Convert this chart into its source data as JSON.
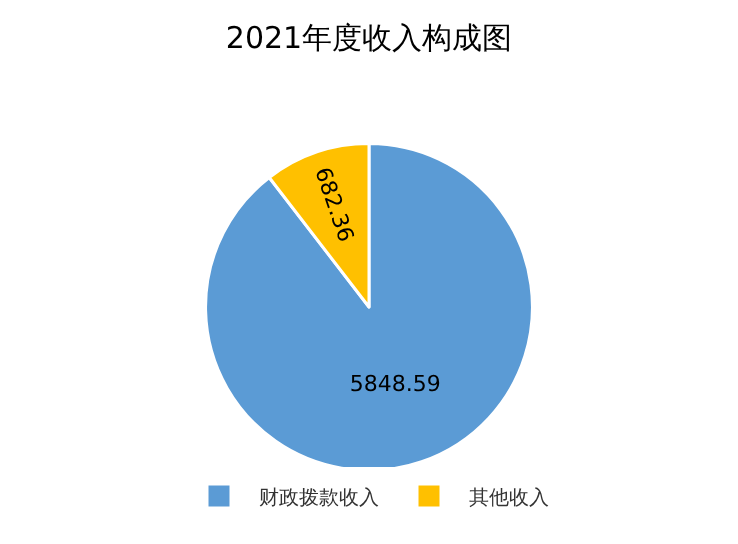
{
  "chart_data": {
    "type": "pie",
    "title": "2021年度收入构成图",
    "categories": [
      "财政拨款收入",
      "其他收入"
    ],
    "values": [
      5848.59,
      682.36
    ],
    "colors": [
      "#5b9bd5",
      "#ffc000"
    ],
    "data_labels": true,
    "legend": "bottom"
  }
}
